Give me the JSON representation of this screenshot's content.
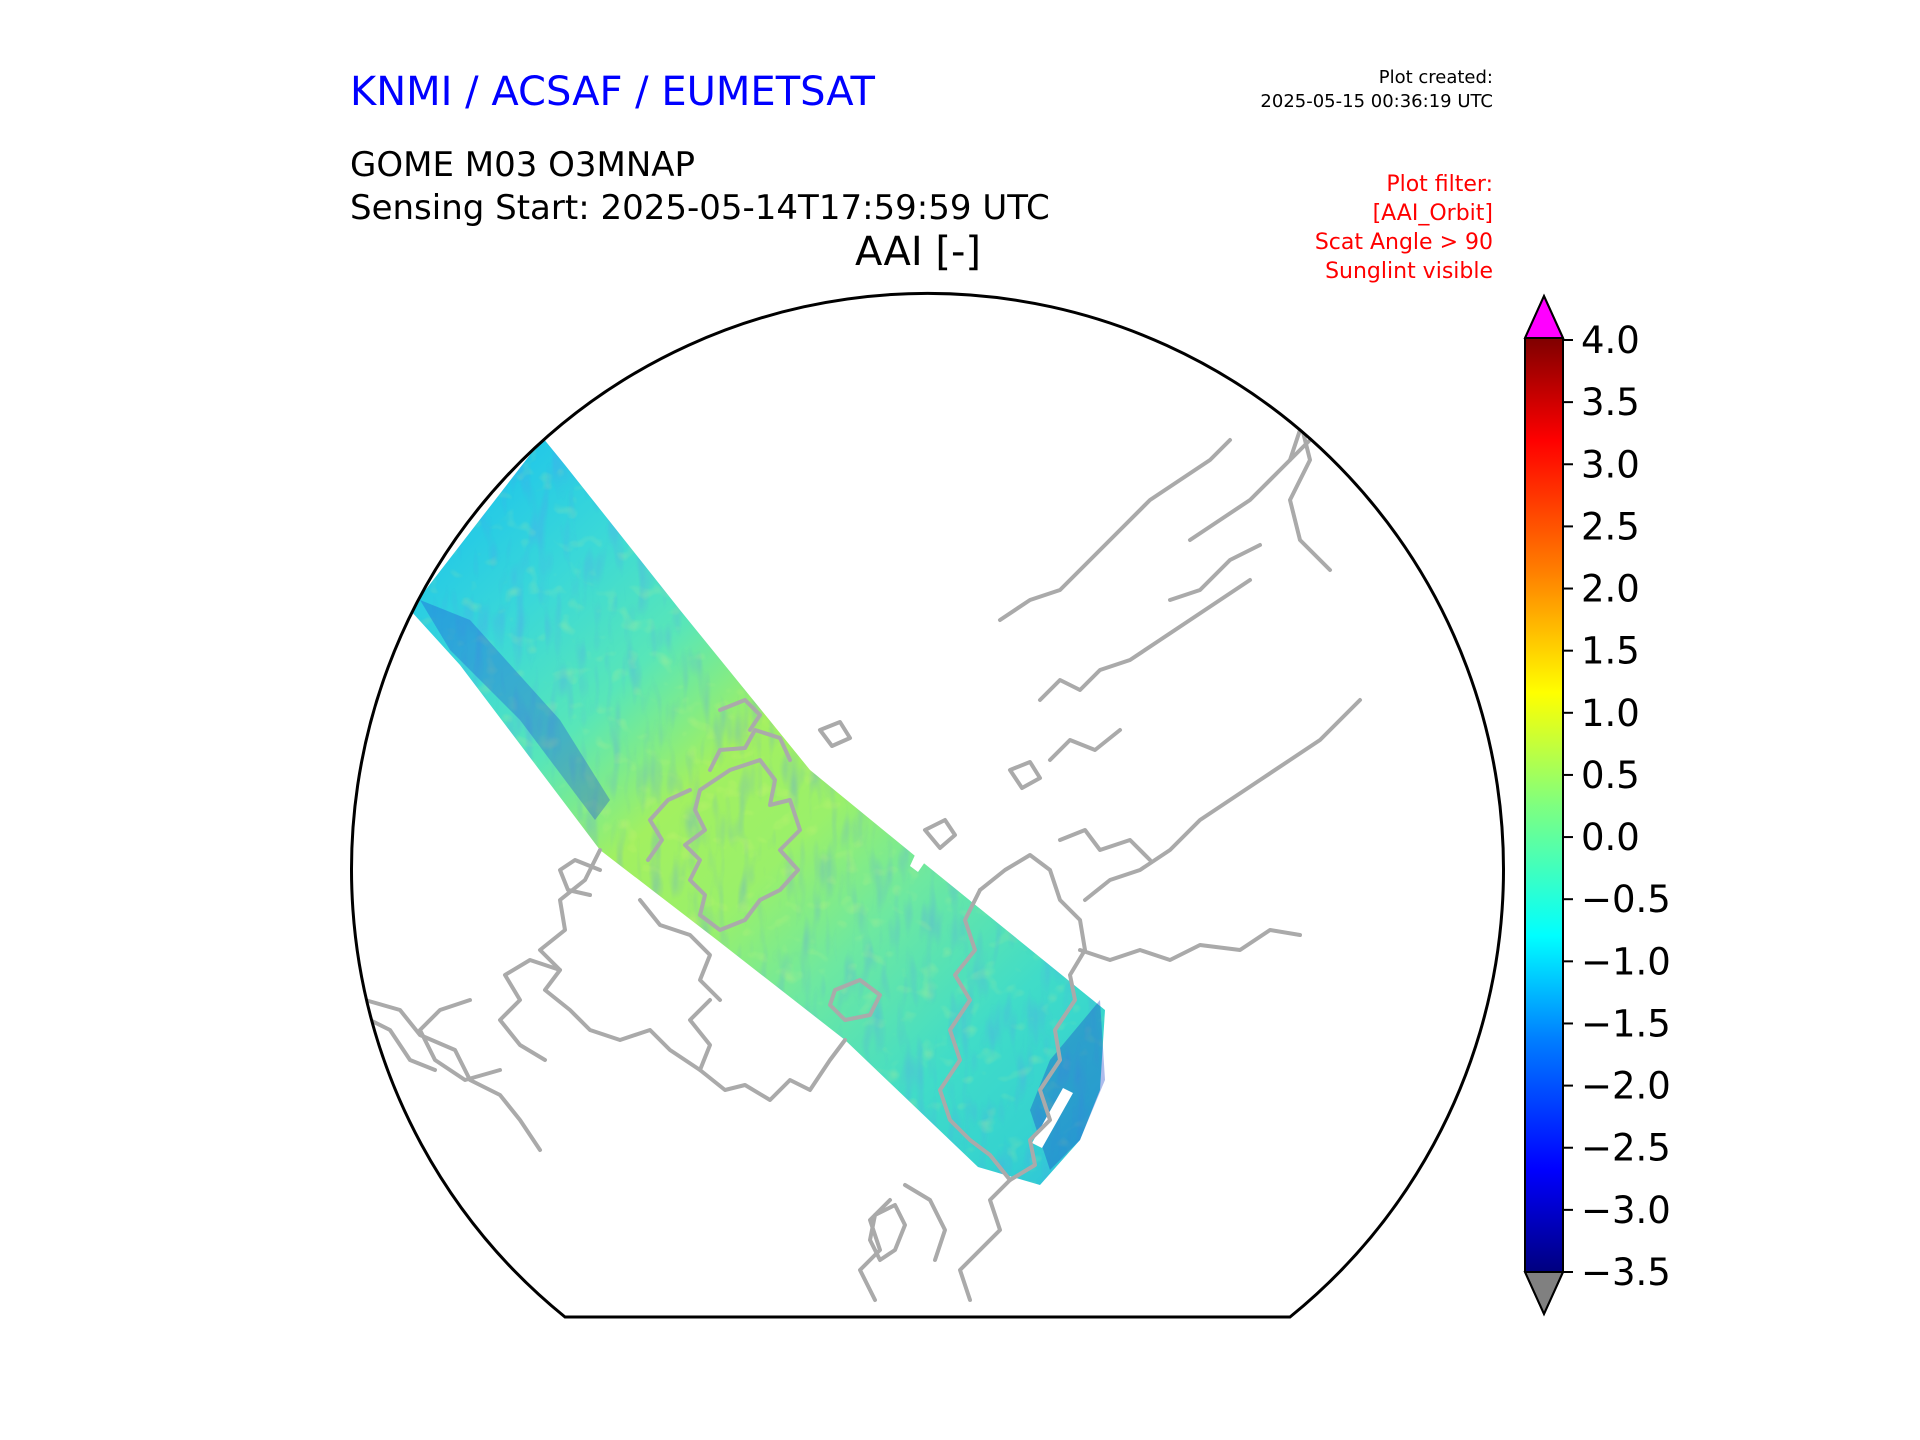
{
  "header": {
    "organization": "KNMI / ACSAF / EUMETSAT",
    "plot_created_label": "Plot created:",
    "plot_created_time": "2025-05-15 00:36:19 UTC",
    "product": "GOME M03 O3MNAP",
    "sensing_start": "Sensing Start: 2025-05-14T17:59:59 UTC",
    "variable": "AAI [-]"
  },
  "filters": {
    "label": "Plot filter:",
    "items": [
      "[AAI_Orbit]",
      "Scat Angle > 90",
      "Sunglint visible"
    ]
  },
  "colorbar": {
    "ticks": [
      "4.0",
      "3.5",
      "3.0",
      "2.5",
      "2.0",
      "1.5",
      "1.0",
      "0.5",
      "0.0",
      "−0.5",
      "−1.0",
      "−1.5",
      "−2.0",
      "−2.5",
      "−3.0",
      "−3.5"
    ],
    "min": -3.5,
    "max": 4.0,
    "over_color": "#ff00ff",
    "under_color": "#808080"
  },
  "colors": {
    "org_title": "#0000ff",
    "filter_text": "#ff0000",
    "coastline": "#aaaaaa",
    "map_border": "#000000"
  }
}
